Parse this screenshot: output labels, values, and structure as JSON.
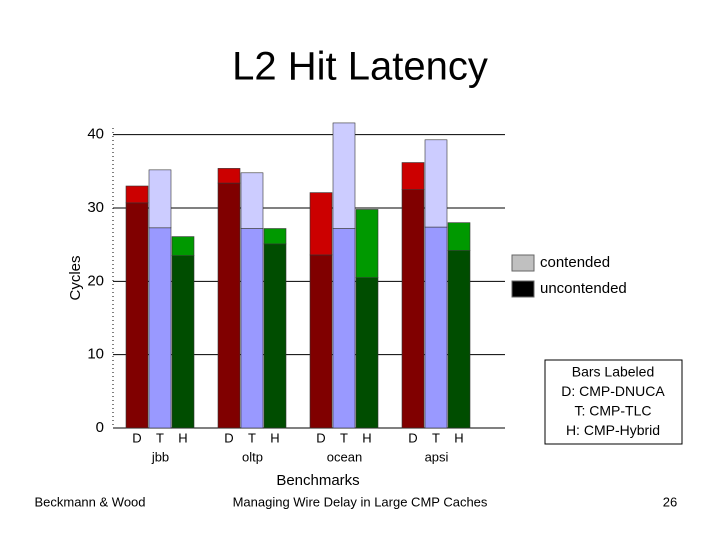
{
  "chart_data": {
    "type": "grouped-stacked-bar",
    "title": "L2 Hit Latency",
    "x_label": "Benchmarks",
    "y_label": "Cycles",
    "categories": [
      "jbb",
      "oltp",
      "ocean",
      "apsi"
    ],
    "designs": [
      {
        "label": "D",
        "colors": [
          "#cc0000",
          "#800000"
        ]
      },
      {
        "label": "T",
        "colors": [
          "#ccccff",
          "#9999ff"
        ]
      },
      {
        "label": "H",
        "colors": [
          "#009900",
          "#004d00"
        ]
      }
    ],
    "series": [
      {
        "name": "contended",
        "color": "#c0c0c0",
        "values": [
          [
            2.3,
            2.0,
            8.5,
            3.7
          ],
          [
            7.9,
            7.6,
            14.4,
            11.9
          ],
          [
            2.6,
            2.1,
            9.3,
            3.8
          ]
        ]
      },
      {
        "name": "uncontended",
        "color": "#000000",
        "values": [
          [
            30.7,
            33.4,
            23.6,
            32.5
          ],
          [
            27.3,
            27.2,
            27.2,
            27.4
          ],
          [
            23.5,
            25.1,
            20.5,
            24.2
          ]
        ]
      }
    ],
    "ylim": [
      0,
      42
    ],
    "yticks": [
      0,
      10,
      20,
      30,
      40
    ],
    "grid": true,
    "annotation": [
      "Bars Labeled",
      "D: CMP-DNUCA",
      "T: CMP-TLC",
      "H: CMP-Hybrid"
    ]
  },
  "footer": {
    "left": "Beckmann & Wood",
    "center": "Managing Wire Delay in Large CMP Caches",
    "right": "26"
  }
}
